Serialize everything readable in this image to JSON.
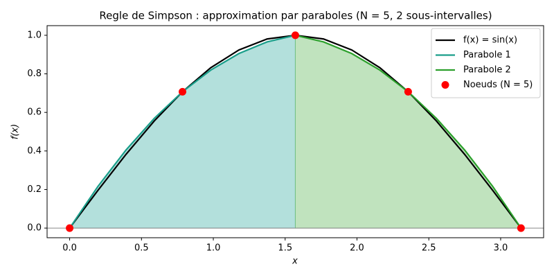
{
  "chart_data": {
    "type": "line",
    "title": "Regle de Simpson : approximation par paraboles (N = 5, 2 sous-intervalles)",
    "x_label": "x",
    "y_label": "f(x)",
    "xlim": [
      -0.157,
      3.299
    ],
    "ylim": [
      -0.05,
      1.05
    ],
    "xticks": [
      {
        "value": 0,
        "label": "0.0"
      },
      0.5,
      {
        "value": 1,
        "label": "1.0"
      },
      1.5,
      {
        "value": 2,
        "label": "2.0"
      },
      2.5,
      {
        "value": 3,
        "label": "3.0"
      }
    ],
    "yticks": [
      {
        "value": 0,
        "label": "0.0"
      },
      0.2,
      0.4,
      0.6,
      0.8,
      {
        "value": 1,
        "label": "1.0"
      }
    ],
    "hline": 0,
    "hline_color": "#888888",
    "legend": "upper right",
    "series": [
      {
        "name": "f(x) = sin(x)",
        "color": "#000000",
        "mode": "line",
        "x": [
          0,
          0.1963,
          0.3927,
          0.589,
          0.7854,
          0.9817,
          1.1781,
          1.3744,
          1.5708,
          1.7671,
          1.9635,
          2.1598,
          2.3562,
          2.5525,
          2.7489,
          2.9452,
          3.1416
        ],
        "values": [
          0,
          0.1951,
          0.3827,
          0.5556,
          0.7071,
          0.8315,
          0.9239,
          0.9808,
          1,
          0.9808,
          0.9239,
          0.8315,
          0.7071,
          0.5556,
          0.3827,
          0.1951,
          0
        ]
      },
      {
        "name": "Parabole 1",
        "color": "#1a9e8a",
        "fill_color": "#b3e0dc",
        "mode": "line",
        "x": [
          0,
          0.1963,
          0.3927,
          0.589,
          0.7854,
          0.9817,
          1.1781,
          1.3744,
          1.5708
        ],
        "values": [
          0,
          0.2156,
          0.4053,
          0.5692,
          0.7071,
          0.8192,
          0.9053,
          0.9657,
          1
        ]
      },
      {
        "name": "Parabole 2",
        "color": "#2ca02c",
        "fill_color": "#c0e3be",
        "mode": "line",
        "x": [
          1.5708,
          1.7671,
          1.9635,
          2.1598,
          2.3562,
          2.5525,
          2.7489,
          2.9452,
          3.1416
        ],
        "values": [
          1,
          0.9657,
          0.9053,
          0.8192,
          0.7071,
          0.5692,
          0.4053,
          0.2156,
          0
        ]
      },
      {
        "name": "Noeuds (N = 5)",
        "color": "#ff0000",
        "mode": "markers",
        "x": [
          0,
          0.7854,
          1.5708,
          2.3562,
          3.1416
        ],
        "values": [
          0,
          0.7071,
          1,
          0.7071,
          0
        ]
      }
    ]
  }
}
